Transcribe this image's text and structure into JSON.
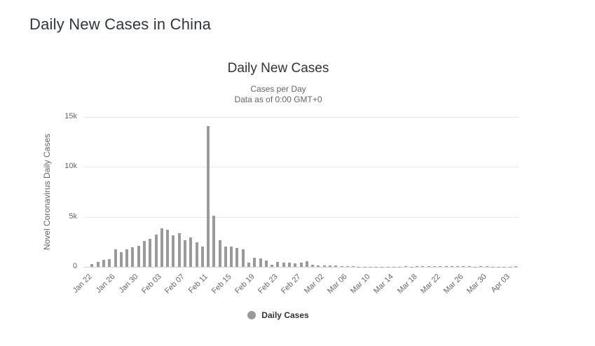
{
  "page": {
    "title": "Daily New Cases in China"
  },
  "chart": {
    "subtitle_line1": "Cases per Day",
    "subtitle_line2": "Data as of 0:00 GMT+0",
    "colors": {
      "bar": "#9a9a9a",
      "legend_dot": "#999999",
      "gridline": "#e6e6e6",
      "axis_line": "#ccd6eb",
      "tick_text": "#666666",
      "title_text": "#333333"
    }
  },
  "chart_data": {
    "type": "bar",
    "title": "Daily New Cases",
    "subtitle": "Cases per Day — Data as of 0:00 GMT+0",
    "xlabel": "",
    "ylabel": "Novel Coronavirus Daily Cases",
    "ylim": [
      0,
      15000
    ],
    "ytick_values": [
      0,
      5000,
      10000,
      15000
    ],
    "ytick_labels": [
      "0",
      "5k",
      "10k",
      "15k"
    ],
    "grid": true,
    "legend": [
      "Daily Cases"
    ],
    "legend_position": "bottom",
    "xtick_labels": [
      "Jan 22",
      "Jan 26",
      "Jan 30",
      "Feb 03",
      "Feb 07",
      "Feb 11",
      "Feb 15",
      "Feb 19",
      "Feb 23",
      "Feb 27",
      "Mar 02",
      "Mar 06",
      "Mar 10",
      "Mar 14",
      "Mar 18",
      "Mar 22",
      "Mar 26",
      "Mar 30",
      "Apr 03"
    ],
    "categories": [
      "Jan 22",
      "Jan 23",
      "Jan 24",
      "Jan 25",
      "Jan 26",
      "Jan 27",
      "Jan 28",
      "Jan 29",
      "Jan 30",
      "Jan 31",
      "Feb 01",
      "Feb 02",
      "Feb 03",
      "Feb 04",
      "Feb 05",
      "Feb 06",
      "Feb 07",
      "Feb 08",
      "Feb 09",
      "Feb 10",
      "Feb 11",
      "Feb 12",
      "Feb 13",
      "Feb 14",
      "Feb 15",
      "Feb 16",
      "Feb 17",
      "Feb 18",
      "Feb 19",
      "Feb 20",
      "Feb 21",
      "Feb 22",
      "Feb 23",
      "Feb 24",
      "Feb 25",
      "Feb 26",
      "Feb 27",
      "Feb 28",
      "Feb 29",
      "Mar 01",
      "Mar 02",
      "Mar 03",
      "Mar 04",
      "Mar 05",
      "Mar 06",
      "Mar 07",
      "Mar 08",
      "Mar 09",
      "Mar 10",
      "Mar 11",
      "Mar 12",
      "Mar 13",
      "Mar 14",
      "Mar 15",
      "Mar 16",
      "Mar 17",
      "Mar 18",
      "Mar 19",
      "Mar 20",
      "Mar 21",
      "Mar 22",
      "Mar 23",
      "Mar 24",
      "Mar 25",
      "Mar 26",
      "Mar 27",
      "Mar 28",
      "Mar 29",
      "Mar 30",
      "Mar 31",
      "Apr 01",
      "Apr 02",
      "Apr 03",
      "Apr 04",
      "Apr 05"
    ],
    "values": [
      0,
      259,
      457,
      688,
      769,
      1771,
      1459,
      1737,
      1981,
      2099,
      2589,
      2825,
      3235,
      3884,
      3694,
      3143,
      3385,
      2652,
      2973,
      2467,
      2015,
      14108,
      5090,
      2641,
      2009,
      2048,
      1886,
      1749,
      391,
      889,
      823,
      648,
      214,
      508,
      406,
      433,
      327,
      427,
      573,
      202,
      125,
      119,
      139,
      143,
      99,
      44,
      40,
      19,
      24,
      15,
      11,
      20,
      16,
      27,
      29,
      39,
      31,
      46,
      41,
      46,
      78,
      74,
      67,
      47,
      55,
      54,
      45,
      31,
      48,
      36,
      35,
      31,
      19,
      30,
      39
    ]
  }
}
